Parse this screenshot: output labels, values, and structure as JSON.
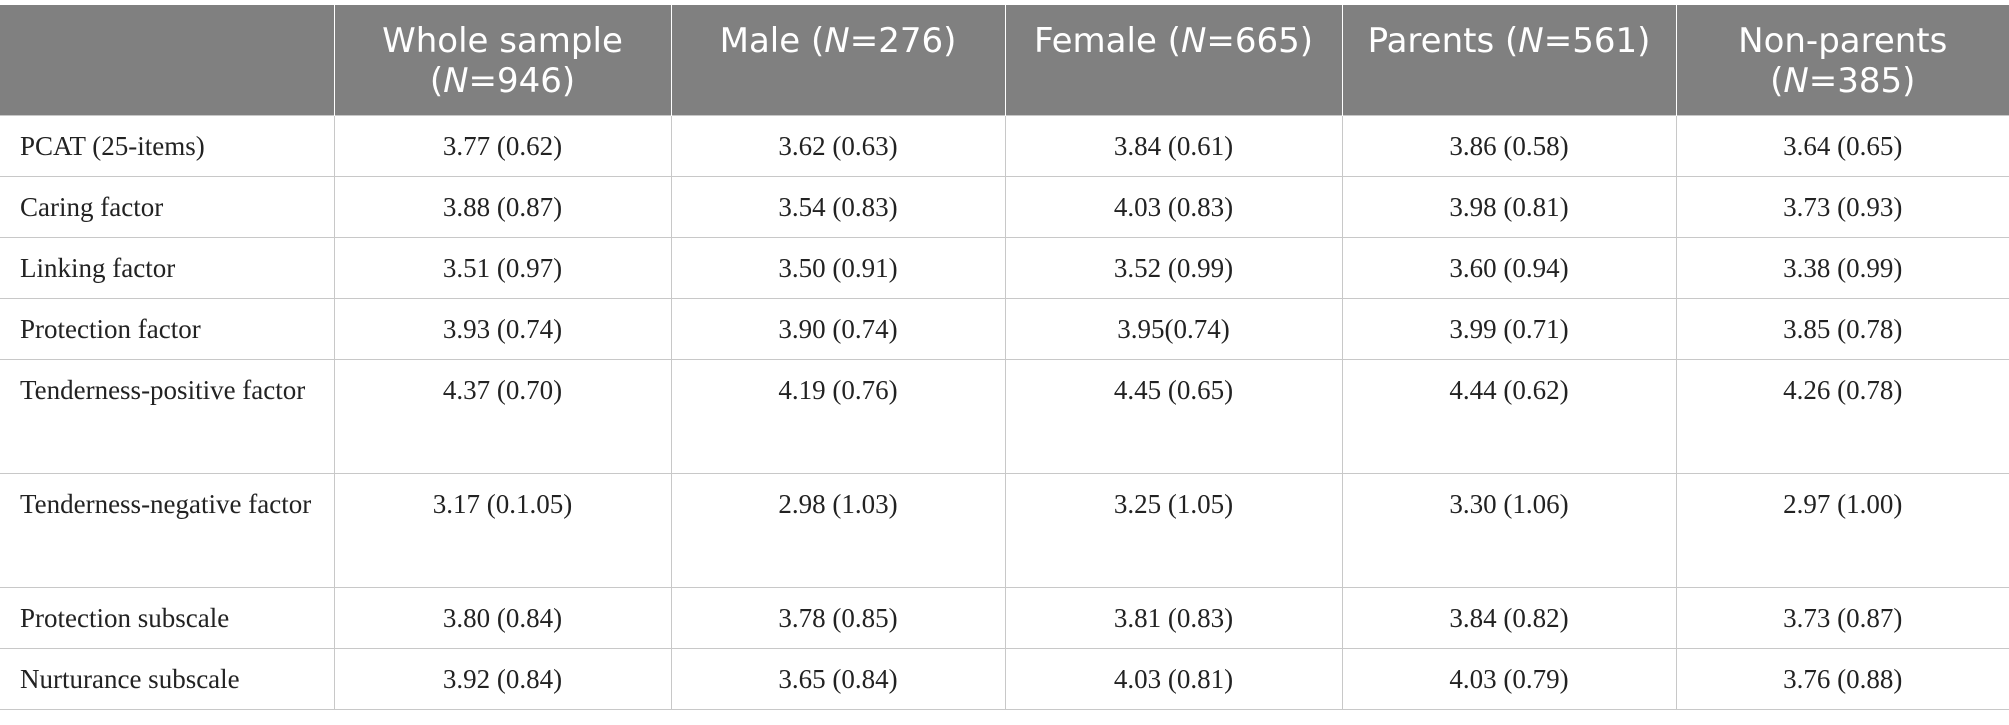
{
  "table": {
    "header": [
      {
        "label": "",
        "n": ""
      },
      {
        "label": "Whole sample",
        "n": "946"
      },
      {
        "label": "Male",
        "n": "276"
      },
      {
        "label": "Female",
        "n": "665"
      },
      {
        "label": "Parents",
        "n": "561"
      },
      {
        "label": "Non-parents",
        "n": "385"
      }
    ],
    "rows": [
      {
        "label": "PCAT (25-items)",
        "values": [
          "3.77 (0.62)",
          "3.62 (0.63)",
          "3.84 (0.61)",
          "3.86 (0.58)",
          "3.64 (0.65)"
        ]
      },
      {
        "label": "Caring factor",
        "values": [
          "3.88 (0.87)",
          "3.54 (0.83)",
          "4.03 (0.83)",
          "3.98 (0.81)",
          "3.73 (0.93)"
        ]
      },
      {
        "label": "Linking factor",
        "values": [
          "3.51 (0.97)",
          "3.50 (0.91)",
          "3.52 (0.99)",
          "3.60 (0.94)",
          "3.38 (0.99)"
        ]
      },
      {
        "label": "Protection factor",
        "values": [
          "3.93 (0.74)",
          "3.90 (0.74)",
          "3.95(0.74)",
          "3.99 (0.71)",
          "3.85 (0.78)"
        ]
      },
      {
        "label": "Tenderness-positive factor",
        "values": [
          "4.37 (0.70)",
          "4.19 (0.76)",
          "4.45 (0.65)",
          "4.44 (0.62)",
          "4.26 (0.78)"
        ]
      },
      {
        "label": "Tenderness-negative factor",
        "values": [
          "3.17 (0.1.05)",
          "2.98 (1.03)",
          "3.25 (1.05)",
          "3.30 (1.06)",
          "2.97 (1.00)"
        ]
      },
      {
        "label": "Protection subscale",
        "values": [
          "3.80 (0.84)",
          "3.78 (0.85)",
          "3.81 (0.83)",
          "3.84 (0.82)",
          "3.73 (0.87)"
        ]
      },
      {
        "label": "Nurturance subscale",
        "values": [
          "3.92 (0.84)",
          "3.65 (0.84)",
          "4.03 (0.81)",
          "4.03 (0.79)",
          "3.76 (0.88)"
        ]
      }
    ]
  }
}
